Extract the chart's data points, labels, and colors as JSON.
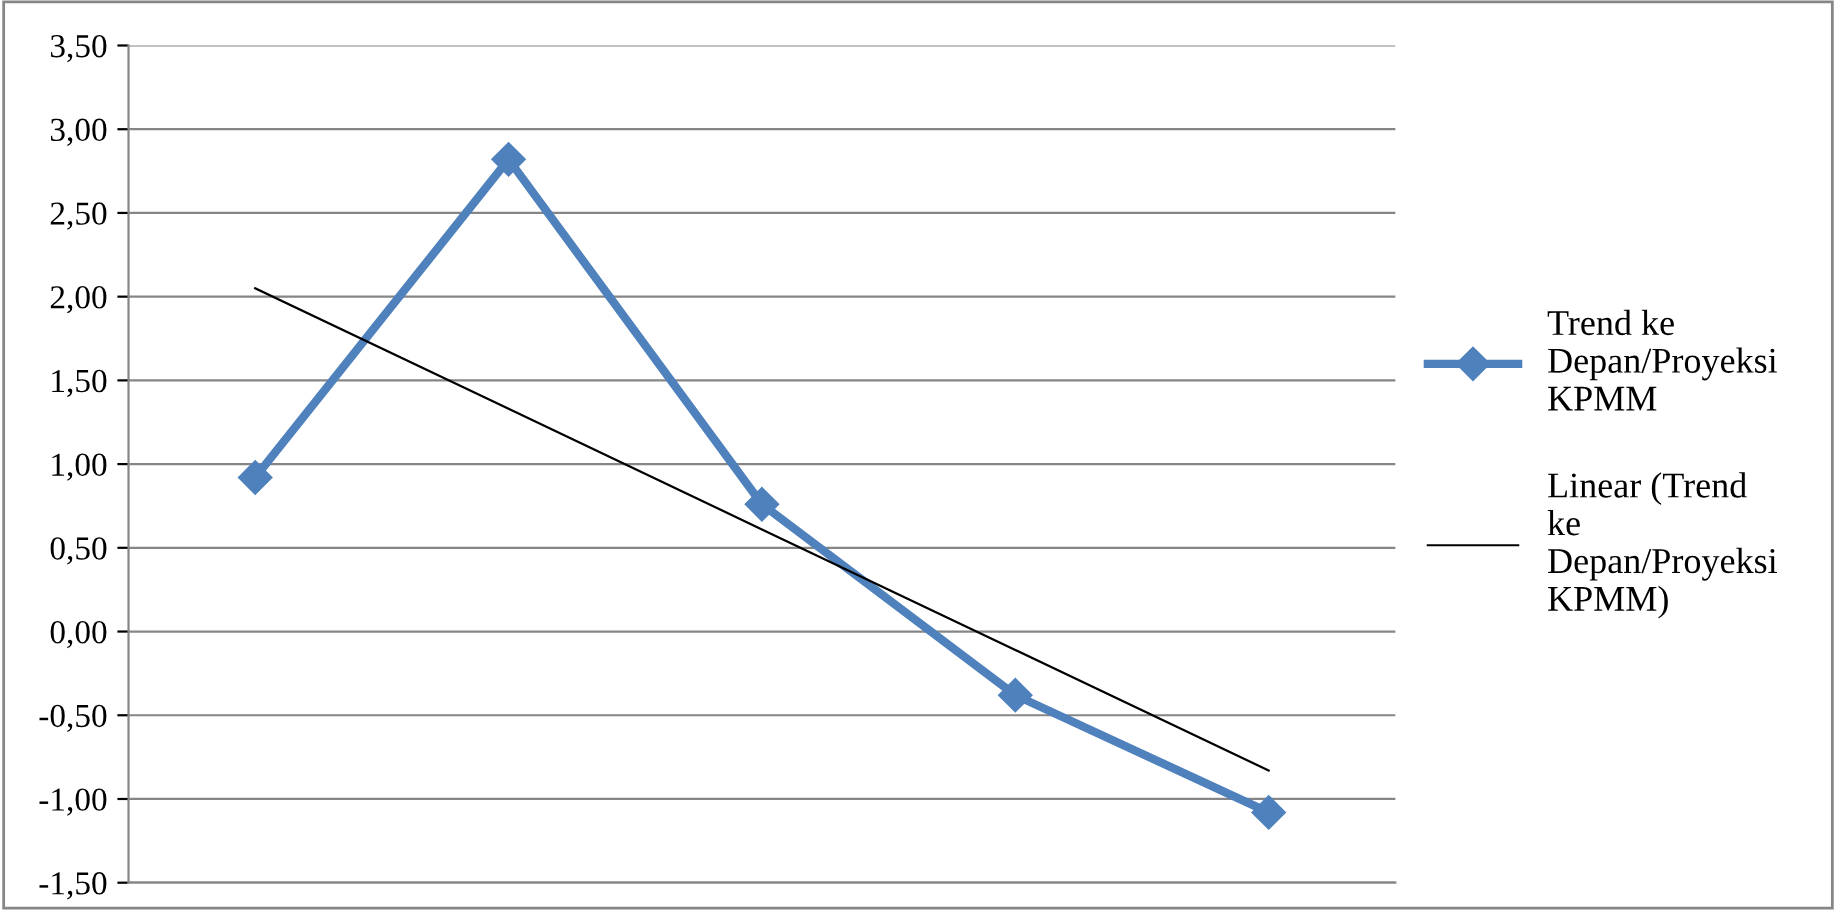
{
  "chart_data": {
    "type": "line",
    "categories": [
      null,
      null,
      null,
      null,
      null
    ],
    "series": [
      {
        "name": "Trend ke Depan/Proyeksi KPMM",
        "color": "#4f81bd",
        "values": [
          0.92,
          2.82,
          0.76,
          -0.38,
          -1.08
        ],
        "marker": "diamond",
        "line_style": "solid"
      },
      {
        "name": "Linear (Trend ke Depan/Proyeksi KPMM)",
        "color": "#000000",
        "values": [
          2.05,
          1.33,
          0.61,
          -0.11,
          -0.83
        ],
        "marker": "none",
        "line_style": "solid"
      }
    ],
    "ylim": [
      -1.5,
      3.5
    ],
    "yticks": [
      {
        "value": -1.5,
        "label": "-1,50"
      },
      {
        "value": -1.0,
        "label": "-1,00"
      },
      {
        "value": -0.5,
        "label": "-0,50"
      },
      {
        "value": 0.0,
        "label": "0,00"
      },
      {
        "value": 0.5,
        "label": "0,50"
      },
      {
        "value": 1.0,
        "label": "1,00"
      },
      {
        "value": 1.5,
        "label": "1,50"
      },
      {
        "value": 2.0,
        "label": "2,00"
      },
      {
        "value": 2.5,
        "label": "2,50"
      },
      {
        "value": 3.0,
        "label": "3,00"
      },
      {
        "value": 3.5,
        "label": "3,50"
      }
    ],
    "grid": "y",
    "legend": "right",
    "tick_labels": "y"
  }
}
